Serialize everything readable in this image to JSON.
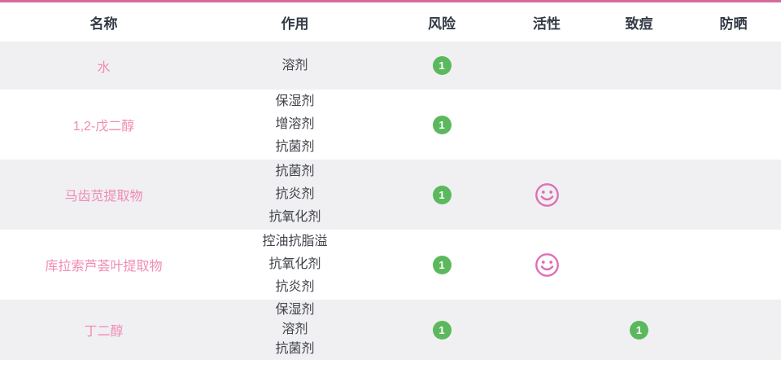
{
  "theme": {
    "accent_pink": "#d66a9f",
    "name_pink": "#f08bb2",
    "badge_green": "#5cb85c",
    "stripe_gray": "#f0f0f3",
    "smiley_pink": "#dd70b5"
  },
  "icons": {
    "risk_badge": "green-circle-number",
    "activity": "smiley-face-icon",
    "acne_badge": "green-circle-number"
  },
  "table": {
    "columns": [
      {
        "key": "name",
        "label": "名称"
      },
      {
        "key": "functions",
        "label": "作用"
      },
      {
        "key": "risk",
        "label": "风险"
      },
      {
        "key": "activity",
        "label": "活性"
      },
      {
        "key": "acne",
        "label": "致痘"
      },
      {
        "key": "sunscreen",
        "label": "防晒"
      }
    ],
    "rows": [
      {
        "name": "水",
        "functions": [
          "溶剂"
        ],
        "risk": "1",
        "activity": false,
        "acne": "",
        "sunscreen": ""
      },
      {
        "name": "1,2-戊二醇",
        "functions": [
          "保湿剂",
          "增溶剂",
          "抗菌剂"
        ],
        "risk": "1",
        "activity": false,
        "acne": "",
        "sunscreen": ""
      },
      {
        "name": "马齿苋提取物",
        "functions": [
          "抗菌剂",
          "抗炎剂",
          "抗氧化剂"
        ],
        "risk": "1",
        "activity": true,
        "acne": "",
        "sunscreen": ""
      },
      {
        "name": "库拉索芦荟叶提取物",
        "functions": [
          "控油抗脂溢",
          "抗氧化剂",
          "抗炎剂"
        ],
        "risk": "1",
        "activity": true,
        "acne": "",
        "sunscreen": ""
      },
      {
        "name": "丁二醇",
        "functions": [
          "保湿剂",
          "溶剂",
          "抗菌剂"
        ],
        "risk": "1",
        "activity": false,
        "acne": "1",
        "sunscreen": ""
      }
    ]
  }
}
